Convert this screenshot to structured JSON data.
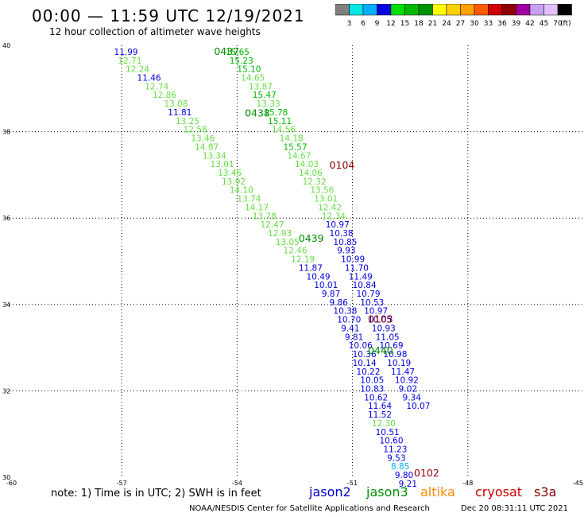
{
  "header": {
    "title": "00:00 — 11:59 UTC 12/19/2021",
    "subtitle": "12 hour collection of altimeter wave heights"
  },
  "colorbar": {
    "unit": "(ft)",
    "colors": [
      "#7f7f7f",
      "#00e5e5",
      "#00b0ff",
      "#0000e0",
      "#00e000",
      "#00b800",
      "#009000",
      "#ffff00",
      "#ffd000",
      "#ffa000",
      "#ff5a00",
      "#d00000",
      "#900000",
      "#a000a0",
      "#c8a0f0",
      "#e0c0ff",
      "#000000"
    ],
    "labels": [
      "3",
      "6",
      "9",
      "12",
      "15",
      "18",
      "21",
      "24",
      "27",
      "30",
      "33",
      "36",
      "39",
      "42",
      "45",
      "70"
    ]
  },
  "footer": {
    "note": "note:  1) Time is in UTC;  2) SWH is in feet",
    "legend": [
      {
        "name": "jason2",
        "color": "#0000cc"
      },
      {
        "name": "jason3",
        "color": "#009000"
      },
      {
        "name": "altika",
        "color": "#ff8c00"
      },
      {
        "name": "cryosat",
        "color": "#cc0000"
      },
      {
        "name": "s3a",
        "color": "#8b0000"
      }
    ],
    "credit": "NOAA/NESDIS Center for Satellite Applications and Research",
    "timestamp": "Dec 20 08:31:11 UTC 2021"
  },
  "chart_data": {
    "type": "scatter",
    "xlim": [
      -60,
      -45
    ],
    "ylim": [
      30,
      40
    ],
    "x_ticks": [
      "-60",
      "-57",
      "-54",
      "-51",
      "-48",
      "-45"
    ],
    "y_ticks": [
      "30",
      "32",
      "34",
      "36",
      "38",
      "40"
    ],
    "grid": true,
    "pass_labels": [
      {
        "text": "0437",
        "x": -54.6,
        "y": 39.78,
        "color": "#009000"
      },
      {
        "text": "0438",
        "x": -53.8,
        "y": 38.35,
        "color": "#009000"
      },
      {
        "text": "0104",
        "x": -51.6,
        "y": 37.15,
        "color": "#8b0000"
      },
      {
        "text": "0439",
        "x": -52.4,
        "y": 35.45,
        "color": "#009000"
      },
      {
        "text": "0103",
        "x": -50.6,
        "y": 33.58,
        "color": "#8b0000"
      },
      {
        "text": "0440",
        "x": -50.6,
        "y": 32.85,
        "color": "#009000"
      },
      {
        "text": "0102",
        "x": -49.4,
        "y": 30.02,
        "color": "#8b0000"
      }
    ],
    "track_a": [
      {
        "v": "11.99",
        "x": -57.2,
        "y": 39.78
      },
      {
        "v": "12.71",
        "x": -57.1,
        "y": 39.58
      },
      {
        "v": "12.24",
        "x": -56.9,
        "y": 39.38
      },
      {
        "v": "11.46",
        "x": -56.6,
        "y": 39.18
      },
      {
        "v": "12.74",
        "x": -56.4,
        "y": 38.98
      },
      {
        "v": "12.86",
        "x": -56.2,
        "y": 38.78
      },
      {
        "v": "13.08",
        "x": -55.9,
        "y": 38.58
      },
      {
        "v": "11.81",
        "x": -55.8,
        "y": 38.38
      },
      {
        "v": "13.25",
        "x": -55.6,
        "y": 38.18
      },
      {
        "v": "12.58",
        "x": -55.4,
        "y": 37.98
      },
      {
        "v": "13.46",
        "x": -55.2,
        "y": 37.78
      },
      {
        "v": "14.87",
        "x": -55.1,
        "y": 37.58
      },
      {
        "v": "13.34",
        "x": -54.9,
        "y": 37.38
      },
      {
        "v": "13.01",
        "x": -54.7,
        "y": 37.18
      },
      {
        "v": "13.46",
        "x": -54.5,
        "y": 36.98
      },
      {
        "v": "13.92",
        "x": -54.4,
        "y": 36.78
      },
      {
        "v": "14.10",
        "x": -54.2,
        "y": 36.58
      },
      {
        "v": "13.74",
        "x": -54.0,
        "y": 36.38
      },
      {
        "v": "14.17",
        "x": -53.8,
        "y": 36.18
      },
      {
        "v": "13.78",
        "x": -53.6,
        "y": 35.98
      },
      {
        "v": "12.47",
        "x": -53.4,
        "y": 35.78
      },
      {
        "v": "12.93",
        "x": -53.2,
        "y": 35.58
      },
      {
        "v": "13.05",
        "x": -53.0,
        "y": 35.38
      },
      {
        "v": "12.46",
        "x": -52.8,
        "y": 35.18
      },
      {
        "v": "12.19",
        "x": -52.6,
        "y": 34.98
      },
      {
        "v": "11.87",
        "x": -52.4,
        "y": 34.78
      },
      {
        "v": "10.49",
        "x": -52.2,
        "y": 34.58
      },
      {
        "v": "10.01",
        "x": -52.0,
        "y": 34.38
      },
      {
        "v": "9.87",
        "x": -51.8,
        "y": 34.18
      },
      {
        "v": "9.86",
        "x": -51.6,
        "y": 33.98
      },
      {
        "v": "10.38",
        "x": -51.5,
        "y": 33.78
      },
      {
        "v": "10.70",
        "x": -51.4,
        "y": 33.58
      },
      {
        "v": "9.41",
        "x": -51.3,
        "y": 33.38
      },
      {
        "v": "9.81",
        "x": -51.2,
        "y": 33.18
      },
      {
        "v": "10.06",
        "x": -51.1,
        "y": 32.98
      },
      {
        "v": "10.36",
        "x": -51.0,
        "y": 32.78
      },
      {
        "v": "10.14",
        "x": -51.0,
        "y": 32.58
      },
      {
        "v": "10.22",
        "x": -50.9,
        "y": 32.38
      },
      {
        "v": "10.05",
        "x": -50.8,
        "y": 32.18
      },
      {
        "v": "10.83",
        "x": -50.8,
        "y": 31.98
      },
      {
        "v": "10.62",
        "x": -50.7,
        "y": 31.78
      },
      {
        "v": "11.64",
        "x": -50.6,
        "y": 31.58
      },
      {
        "v": "11.52",
        "x": -50.6,
        "y": 31.38
      },
      {
        "v": "12.30",
        "x": -50.5,
        "y": 31.18
      },
      {
        "v": "10.51",
        "x": -50.4,
        "y": 30.98
      },
      {
        "v": "10.60",
        "x": -50.3,
        "y": 30.78
      },
      {
        "v": "11.23",
        "x": -50.2,
        "y": 30.58
      },
      {
        "v": "9.53",
        "x": -50.1,
        "y": 30.38
      },
      {
        "v": "8.85",
        "x": -50.0,
        "y": 30.18
      },
      {
        "v": "9.80",
        "x": -49.9,
        "y": 29.98
      },
      {
        "v": "9.21",
        "x": -49.8,
        "y": 29.78
      }
    ],
    "track_b": [
      {
        "v": "15.65",
        "x": -54.3,
        "y": 39.78
      },
      {
        "v": "15.23",
        "x": -54.2,
        "y": 39.58
      },
      {
        "v": "15.10",
        "x": -54.0,
        "y": 39.38
      },
      {
        "v": "14.65",
        "x": -53.9,
        "y": 39.18
      },
      {
        "v": "13.87",
        "x": -53.7,
        "y": 38.98
      },
      {
        "v": "15.47",
        "x": -53.6,
        "y": 38.78
      },
      {
        "v": "13.33",
        "x": -53.5,
        "y": 38.58
      },
      {
        "v": "15.78",
        "x": -53.3,
        "y": 38.38
      },
      {
        "v": "15.11",
        "x": -53.2,
        "y": 38.18
      },
      {
        "v": "14.56",
        "x": -53.1,
        "y": 37.98
      },
      {
        "v": "14.18",
        "x": -52.9,
        "y": 37.78
      },
      {
        "v": "15.57",
        "x": -52.8,
        "y": 37.58
      },
      {
        "v": "14.67",
        "x": -52.7,
        "y": 37.38
      },
      {
        "v": "14.03",
        "x": -52.5,
        "y": 37.18
      },
      {
        "v": "14.06",
        "x": -52.4,
        "y": 36.98
      },
      {
        "v": "12.32",
        "x": -52.3,
        "y": 36.78
      },
      {
        "v": "13.56",
        "x": -52.1,
        "y": 36.58
      },
      {
        "v": "13.01",
        "x": -52.0,
        "y": 36.38
      },
      {
        "v": "12.42",
        "x": -51.9,
        "y": 36.18
      },
      {
        "v": "12.34",
        "x": -51.8,
        "y": 35.98
      },
      {
        "v": "10.97",
        "x": -51.7,
        "y": 35.78
      },
      {
        "v": "10.38",
        "x": -51.6,
        "y": 35.58
      },
      {
        "v": "10.85",
        "x": -51.5,
        "y": 35.38
      },
      {
        "v": "9.93",
        "x": -51.4,
        "y": 35.18
      },
      {
        "v": "10.99",
        "x": -51.3,
        "y": 34.98
      },
      {
        "v": "11.70",
        "x": -51.2,
        "y": 34.78
      },
      {
        "v": "11.49",
        "x": -51.1,
        "y": 34.58
      },
      {
        "v": "10.84",
        "x": -51.0,
        "y": 34.38
      },
      {
        "v": "10.79",
        "x": -50.9,
        "y": 34.18
      },
      {
        "v": "10.53",
        "x": -50.8,
        "y": 33.98
      },
      {
        "v": "10.97",
        "x": -50.7,
        "y": 33.78
      },
      {
        "v": "10.05",
        "x": -50.6,
        "y": 33.58
      },
      {
        "v": "10.93",
        "x": -50.5,
        "y": 33.38
      },
      {
        "v": "11.05",
        "x": -50.4,
        "y": 33.18
      },
      {
        "v": "10.69",
        "x": -50.3,
        "y": 32.98
      },
      {
        "v": "10.98",
        "x": -50.2,
        "y": 32.78
      },
      {
        "v": "10.19",
        "x": -50.1,
        "y": 32.58
      },
      {
        "v": "11.47",
        "x": -50.0,
        "y": 32.38
      },
      {
        "v": "10.92",
        "x": -49.9,
        "y": 32.18
      },
      {
        "v": "9.02",
        "x": -49.8,
        "y": 31.98
      },
      {
        "v": "9.34",
        "x": -49.7,
        "y": 31.78
      },
      {
        "v": "10.07",
        "x": -49.6,
        "y": 31.58
      }
    ]
  }
}
